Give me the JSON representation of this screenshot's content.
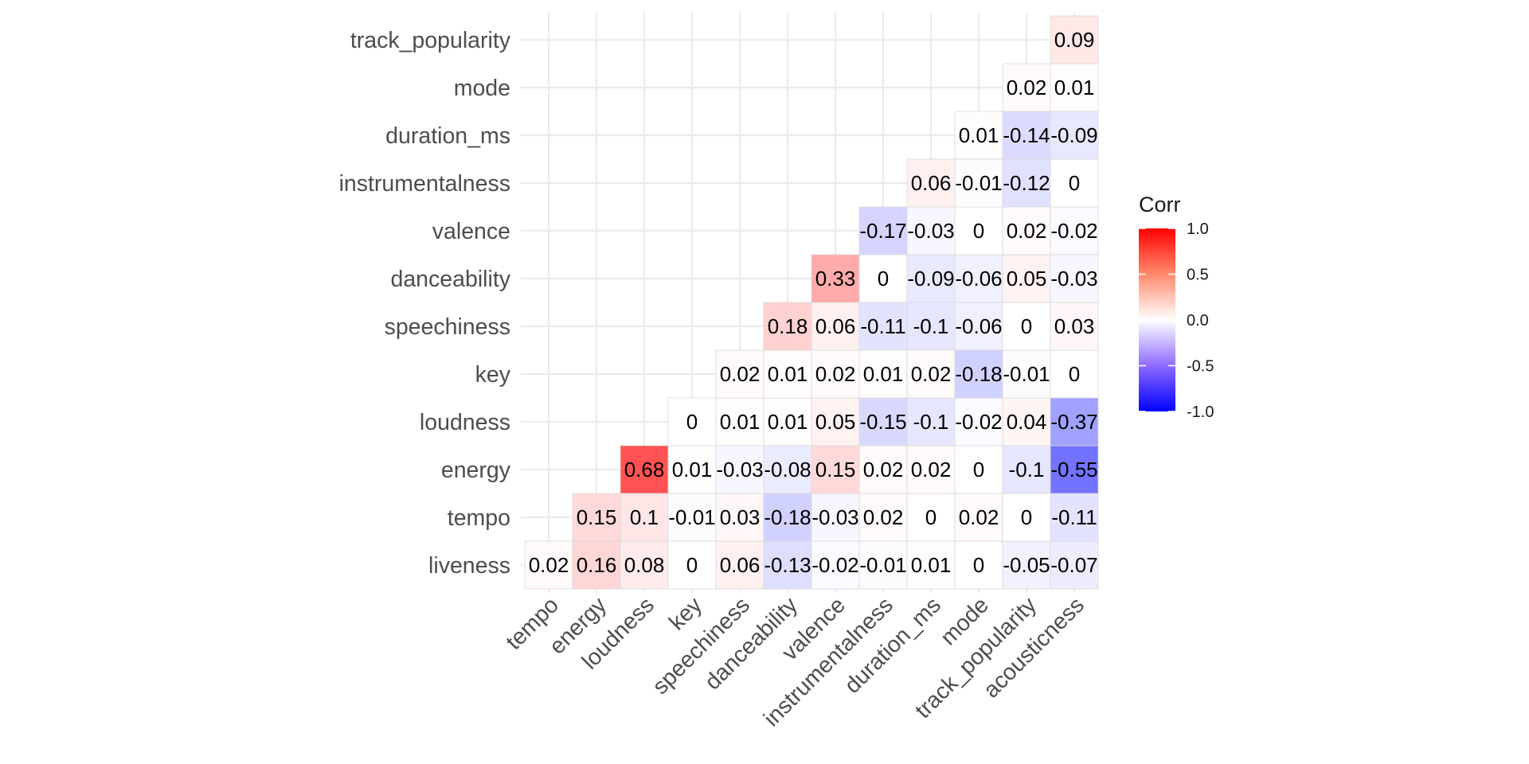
{
  "chart_data": {
    "type": "heatmap",
    "title": "",
    "xlabel": "",
    "ylabel": "",
    "x_categories": [
      "tempo",
      "energy",
      "loudness",
      "key",
      "speechiness",
      "danceability",
      "valence",
      "instrumentalness",
      "duration_ms",
      "mode",
      "track_popularity",
      "acousticness"
    ],
    "y_categories": [
      "liveness",
      "tempo",
      "energy",
      "loudness",
      "key",
      "speechiness",
      "danceability",
      "valence",
      "instrumentalness",
      "duration_ms",
      "mode",
      "track_popularity"
    ],
    "values": [
      [
        0.02,
        0.16,
        0.08,
        0,
        0.06,
        -0.13,
        -0.02,
        -0.01,
        0.01,
        0,
        -0.05,
        -0.07
      ],
      [
        null,
        0.15,
        0.1,
        -0.01,
        0.03,
        -0.18,
        -0.03,
        0.02,
        0,
        0.02,
        0,
        -0.11
      ],
      [
        null,
        null,
        0.68,
        0.01,
        -0.03,
        -0.08,
        0.15,
        0.02,
        0.02,
        0,
        -0.1,
        -0.55
      ],
      [
        null,
        null,
        null,
        0,
        0.01,
        0.01,
        0.05,
        -0.15,
        -0.1,
        -0.02,
        0.04,
        -0.37
      ],
      [
        null,
        null,
        null,
        null,
        0.02,
        0.01,
        0.02,
        0.01,
        0.02,
        -0.18,
        -0.01,
        0
      ],
      [
        null,
        null,
        null,
        null,
        null,
        0.18,
        0.06,
        -0.11,
        -0.1,
        -0.06,
        0,
        0.03
      ],
      [
        null,
        null,
        null,
        null,
        null,
        null,
        0.33,
        0,
        -0.09,
        -0.06,
        0.05,
        -0.03
      ],
      [
        null,
        null,
        null,
        null,
        null,
        null,
        null,
        -0.17,
        -0.03,
        0,
        0.02,
        -0.02
      ],
      [
        null,
        null,
        null,
        null,
        null,
        null,
        null,
        null,
        0.06,
        -0.01,
        -0.12,
        0
      ],
      [
        null,
        null,
        null,
        null,
        null,
        null,
        null,
        null,
        null,
        0.01,
        -0.14,
        -0.09
      ],
      [
        null,
        null,
        null,
        null,
        null,
        null,
        null,
        null,
        null,
        null,
        0.02,
        0.01
      ],
      [
        null,
        null,
        null,
        null,
        null,
        null,
        null,
        null,
        null,
        null,
        null,
        0.09
      ]
    ],
    "legend": {
      "title": "Corr",
      "ticks": [
        1.0,
        0.5,
        0.0,
        -0.5,
        -1.0
      ],
      "tick_labels": [
        "1.0",
        "0.5",
        "0.0",
        "-0.5",
        "-1.0"
      ],
      "range": [
        -1,
        1
      ],
      "colors": {
        "low": "#0000ff",
        "mid": "#ffffff",
        "high": "#ff0000"
      },
      "placement": "right"
    },
    "grid": true
  }
}
